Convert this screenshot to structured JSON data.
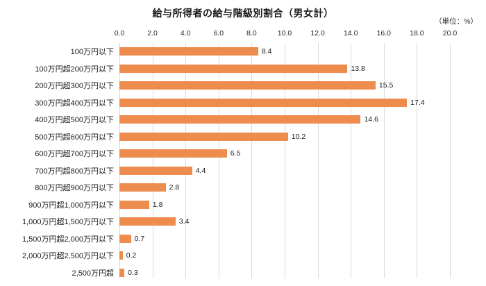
{
  "colors": {
    "bar": "#ED8C4D",
    "grid": "#D9D9D9",
    "text": "#1A1A1A",
    "background": "#FFFFFF"
  },
  "chart_data": {
    "type": "bar",
    "orientation": "horizontal",
    "title": "給与所得者の給与階級別割合（男女計）",
    "unit": "（単位：%）",
    "categories": [
      "100万円以下",
      "100万円超200万円以下",
      "200万円超300万円以下",
      "300万円超400万円以下",
      "400万円超500万円以下",
      "500万円超600万円以下",
      "600万円超700万円以下",
      "700万円超800万円以下",
      "800万円超900万円以下",
      "900万円超1,000万円以下",
      "1,000万円超1,500万円以下",
      "1,500万円超2,000万円以下",
      "2,000万円超2,500万円以下",
      "2,500万円超"
    ],
    "values": [
      8.4,
      13.8,
      15.5,
      17.4,
      14.6,
      10.2,
      6.5,
      4.4,
      2.8,
      1.8,
      3.4,
      0.7,
      0.2,
      0.3
    ],
    "xlabel": "",
    "ylabel": "",
    "xlim": [
      0,
      20
    ],
    "xticks": [
      "0.0",
      "2.0",
      "4.0",
      "6.0",
      "8.0",
      "10.0",
      "12.0",
      "14.0",
      "16.0",
      "18.0",
      "20.0"
    ],
    "grid": true,
    "value_labels": true,
    "legend": null
  }
}
